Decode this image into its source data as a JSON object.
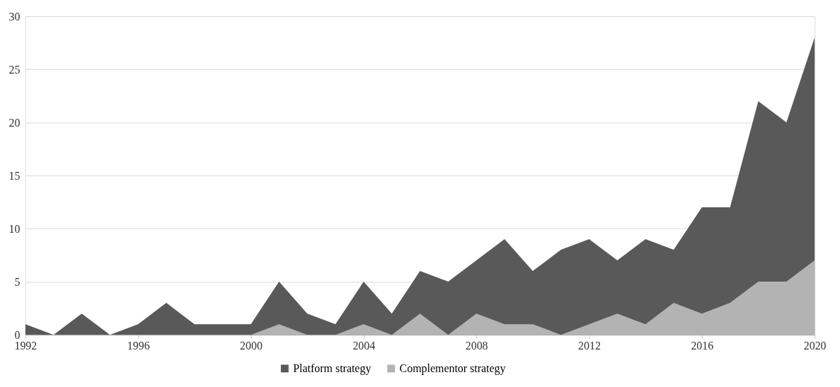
{
  "chart_data": {
    "type": "area",
    "x": [
      1992,
      1993,
      1994,
      1995,
      1996,
      1997,
      1998,
      1999,
      2000,
      2001,
      2002,
      2003,
      2004,
      2005,
      2006,
      2007,
      2008,
      2009,
      2010,
      2011,
      2012,
      2013,
      2014,
      2015,
      2016,
      2017,
      2018,
      2019,
      2020
    ],
    "series": [
      {
        "name": "Platform strategy",
        "color": "#595959",
        "values": [
          1,
          0,
          2,
          0,
          1,
          3,
          1,
          1,
          1,
          5,
          2,
          1,
          5,
          2,
          6,
          5,
          7,
          9,
          6,
          8,
          9,
          7,
          9,
          8,
          12,
          12,
          22,
          20,
          28
        ]
      },
      {
        "name": "Complementor strategy",
        "color": "#b3b3b3",
        "values": [
          0,
          0,
          0,
          0,
          0,
          0,
          0,
          0,
          0,
          1,
          0,
          0,
          1,
          0,
          2,
          0,
          2,
          1,
          1,
          0,
          1,
          2,
          1,
          3,
          2,
          3,
          5,
          5,
          7
        ]
      }
    ],
    "xlim": [
      1992,
      2020
    ],
    "xticks": [
      1992,
      1996,
      2000,
      2004,
      2008,
      2012,
      2016,
      2020
    ],
    "ylim": [
      0,
      30
    ],
    "yticks": [
      0,
      5,
      10,
      15,
      20,
      25,
      30
    ],
    "grid": "y",
    "legend": "bottom"
  }
}
